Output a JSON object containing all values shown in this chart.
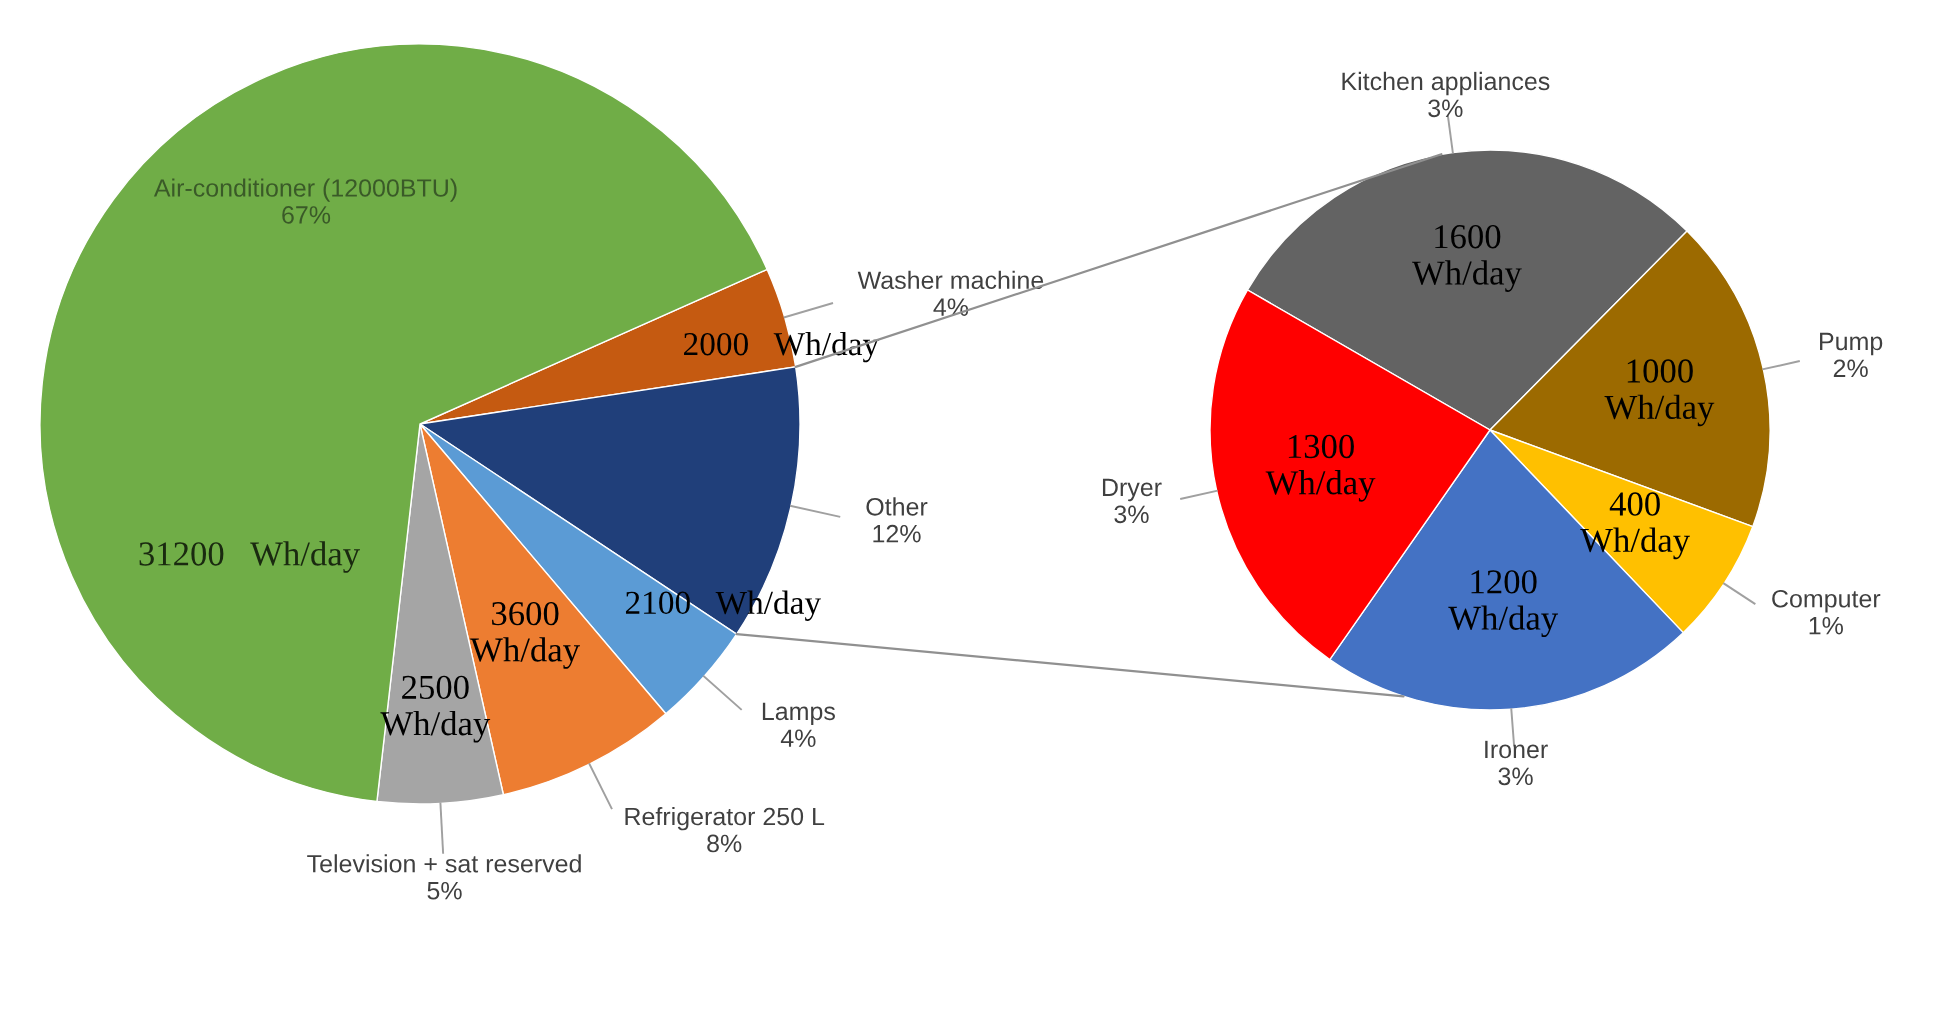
{
  "chart_data": [
    {
      "type": "pie",
      "categories": [
        "Washer machine\n4%",
        "Other\n12%",
        "Lamps\n4%",
        "Refrigerator 250 L\n8%",
        "Television + sat reserved\n5%",
        "Air-conditioner (12000BTU)\n67%"
      ],
      "values": [
        2000,
        5500,
        2100,
        3600,
        2500,
        31200
      ],
      "colors": [
        "#c55a11",
        "#203f7a",
        "#5b9bd5",
        "#ed7d31",
        "#a5a5a5",
        "#70ad47"
      ],
      "value_labels": [
        "2000   Wh/day",
        null,
        "2100   Wh/day",
        "3600\nWh/day",
        "2500\nWh/day",
        "31200   Wh/day"
      ]
    },
    {
      "type": "pie",
      "categories": [
        "Kitchen appliances\n3%",
        "Pump\n2%",
        "Computer\n1%",
        "Ironer\n3%",
        "Dryer\n3%"
      ],
      "values": [
        1600,
        1000,
        400,
        1200,
        1300
      ],
      "colors": [
        "#636363",
        "#9c6a00",
        "#ffc000",
        "#4472c4",
        "#ff0000"
      ],
      "value_labels": [
        "1600\nWh/day",
        "1000\nWh/day",
        "400\nWh/day",
        "1200\nWh/day",
        "1300\nWh/day"
      ]
    }
  ]
}
